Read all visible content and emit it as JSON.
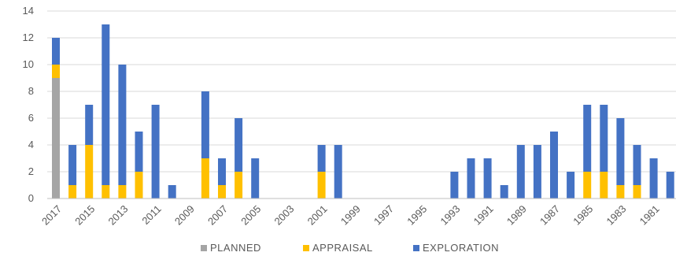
{
  "chart_data": {
    "type": "bar",
    "stacked": true,
    "categories": [
      "2017",
      "2016",
      "2015",
      "2014",
      "2013",
      "2012",
      "2011",
      "2010",
      "2009",
      "2008",
      "2007",
      "2006",
      "2005",
      "2004",
      "2003",
      "2002",
      "2001",
      "2000",
      "1999",
      "1998",
      "1997",
      "1996",
      "1995",
      "1994",
      "1993",
      "1992",
      "1991",
      "1990",
      "1989",
      "1988",
      "1987",
      "1986",
      "1985",
      "1984",
      "1983",
      "1982",
      "1981",
      "1980"
    ],
    "x_tick_labels": [
      "2017",
      "2015",
      "2013",
      "2011",
      "2009",
      "2007",
      "2005",
      "2003",
      "2001",
      "1999",
      "1997",
      "1995",
      "1993",
      "1991",
      "1989",
      "1987",
      "1985",
      "1983",
      "1981"
    ],
    "series": [
      {
        "name": "PLANNED",
        "color": "#A5A5A5",
        "values": [
          9,
          0,
          0,
          0,
          0,
          0,
          0,
          0,
          0,
          0,
          0,
          0,
          0,
          0,
          0,
          0,
          0,
          0,
          0,
          0,
          0,
          0,
          0,
          0,
          0,
          0,
          0,
          0,
          0,
          0,
          0,
          0,
          0,
          0,
          0,
          0,
          0,
          0
        ]
      },
      {
        "name": "APPRAISAL",
        "color": "#FFC000",
        "values": [
          1,
          1,
          4,
          1,
          1,
          2,
          0,
          0,
          0,
          3,
          1,
          2,
          0,
          0,
          0,
          0,
          2,
          0,
          0,
          0,
          0,
          0,
          0,
          0,
          0,
          0,
          0,
          0,
          0,
          0,
          0,
          0,
          2,
          2,
          1,
          1,
          0,
          0
        ]
      },
      {
        "name": "EXPLORATION",
        "color": "#4472C4",
        "values": [
          2,
          3,
          3,
          12,
          9,
          3,
          7,
          1,
          0,
          5,
          2,
          4,
          3,
          0,
          0,
          0,
          2,
          4,
          0,
          0,
          0,
          0,
          0,
          0,
          2,
          3,
          3,
          1,
          4,
          4,
          5,
          2,
          5,
          5,
          5,
          3,
          3,
          2
        ]
      }
    ],
    "y_ticks": [
      "0",
      "2",
      "4",
      "6",
      "8",
      "10",
      "12",
      "14"
    ],
    "ylim": [
      0,
      14
    ],
    "grid": true,
    "legend_position": "bottom"
  }
}
